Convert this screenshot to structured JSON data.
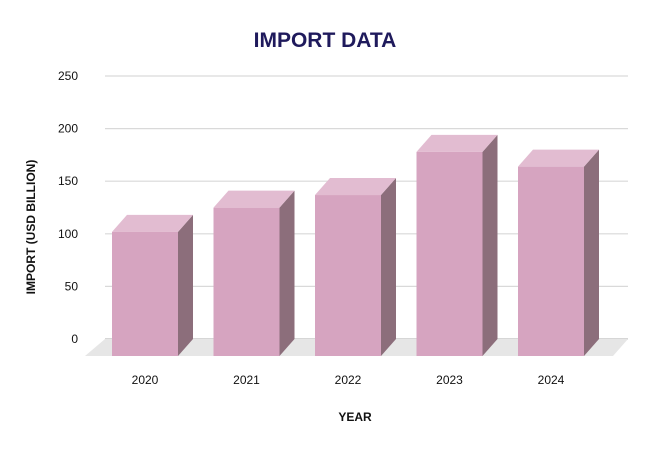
{
  "chart_data": {
    "type": "bar",
    "title": "IMPORT DATA",
    "xlabel": "YEAR",
    "ylabel": "IMPORT (USD BILLION)",
    "categories": [
      "2020",
      "2021",
      "2022",
      "2023",
      "2024"
    ],
    "values": [
      118,
      141,
      153,
      194,
      180
    ],
    "ylim": [
      0,
      250
    ],
    "yticks": [
      0,
      50,
      100,
      150,
      200,
      250
    ],
    "grid": true,
    "style": "3d",
    "colors": {
      "bar_front": "#d6a4c0",
      "bar_top": "#e2bcd1",
      "bar_side": "#8c6e7b",
      "title": "#1f1a5c",
      "grid": "#d9d9d9",
      "floor": "#e6e6e6"
    }
  }
}
